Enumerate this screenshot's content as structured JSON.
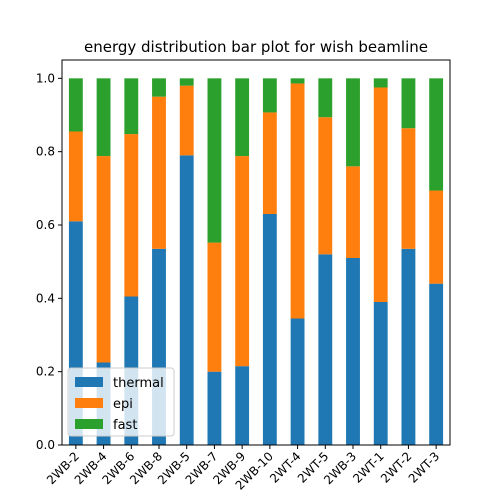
{
  "chart_data": {
    "type": "bar",
    "stacked": true,
    "title": "energy distribution bar plot for wish beamline",
    "xlabel": "",
    "ylabel": "",
    "ylim": [
      0,
      1.05
    ],
    "yticks": [
      "0.0",
      "0.2",
      "0.4",
      "0.6",
      "0.8",
      "1.0"
    ],
    "categories": [
      "2WB-2",
      "2WB-4",
      "2WB-6",
      "2WB-8",
      "2WB-5",
      "2WB-7",
      "2WB-9",
      "2WB-10",
      "2WT-4",
      "2WT-5",
      "2WB-3",
      "2WT-1",
      "2WT-2",
      "2WT-3"
    ],
    "series": [
      {
        "name": "thermal",
        "color": "#1f77b4",
        "values": [
          0.61,
          0.225,
          0.405,
          0.535,
          0.79,
          0.2,
          0.215,
          0.63,
          0.345,
          0.52,
          0.51,
          0.39,
          0.535,
          0.44
        ]
      },
      {
        "name": "epi",
        "color": "#ff7f0e",
        "values": [
          0.245,
          0.563,
          0.443,
          0.415,
          0.19,
          0.352,
          0.573,
          0.277,
          0.641,
          0.374,
          0.25,
          0.585,
          0.329,
          0.254
        ]
      },
      {
        "name": "fast",
        "color": "#2ca02c",
        "values": [
          0.145,
          0.212,
          0.152,
          0.05,
          0.02,
          0.448,
          0.212,
          0.093,
          0.014,
          0.106,
          0.24,
          0.025,
          0.136,
          0.306
        ]
      }
    ],
    "legend_position": "lower-left",
    "grid": false
  }
}
